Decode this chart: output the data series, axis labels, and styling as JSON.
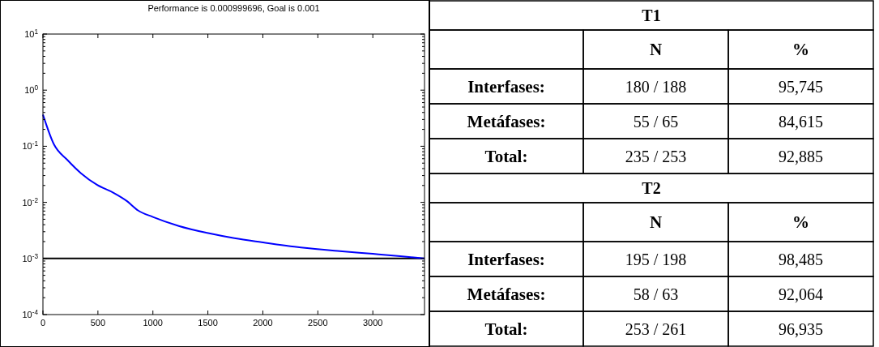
{
  "chart_data": [
    {
      "type": "line",
      "title": "Performance is 0.000999696, Goal is 0.001",
      "log": "y",
      "x": [
        0,
        99,
        222,
        346,
        494,
        642,
        765,
        864,
        1000,
        1235,
        1494,
        1741,
        1988,
        2346,
        2700,
        3000,
        3250,
        3470
      ],
      "series": [
        {
          "color": "#0000ff",
          "values": [
            0.366,
            0.109,
            0.057,
            0.033,
            0.0204,
            0.0148,
            0.0105,
            0.0072,
            0.0055,
            0.0038,
            0.00285,
            0.0023,
            0.00195,
            0.00157,
            0.00135,
            0.00121,
            0.0011,
            0.000999696
          ]
        }
      ],
      "ref_lines": [
        {
          "axis": "y",
          "value": 0.001,
          "color": "#000000"
        }
      ],
      "xlim": [
        0,
        3470
      ],
      "xticks": [
        0,
        500,
        1000,
        1500,
        2000,
        2500,
        3000
      ],
      "ylim": [
        0.0001,
        10
      ],
      "yticks": [
        {
          "value": 0.0001,
          "label": "10$^{-4}$"
        },
        {
          "value": 0.001,
          "label": "10$^{-3}$"
        },
        {
          "value": 0.01,
          "label": "10$^{-2}$"
        },
        {
          "value": 0.1,
          "label": "10$^{-1}$"
        },
        {
          "value": 1,
          "label": "10$^{0}$"
        },
        {
          "value": 10,
          "label": "10$^{1}$"
        }
      ],
      "grid": false
    },
    {
      "type": "other",
      "annotations": [
        "T1",
        "N",
        "%",
        "Interfases:",
        "180 / 188",
        "95,745",
        "Metáfases:",
        "55 / 65",
        "84,615",
        "Total:",
        "235 / 253",
        "92,885",
        "T2",
        "N",
        "%",
        "Interfases:",
        "195 / 198",
        "98,485",
        "Metáfases:",
        "58 / 63",
        "92,064",
        "Total:",
        "253 / 261",
        "96,935"
      ]
    }
  ]
}
